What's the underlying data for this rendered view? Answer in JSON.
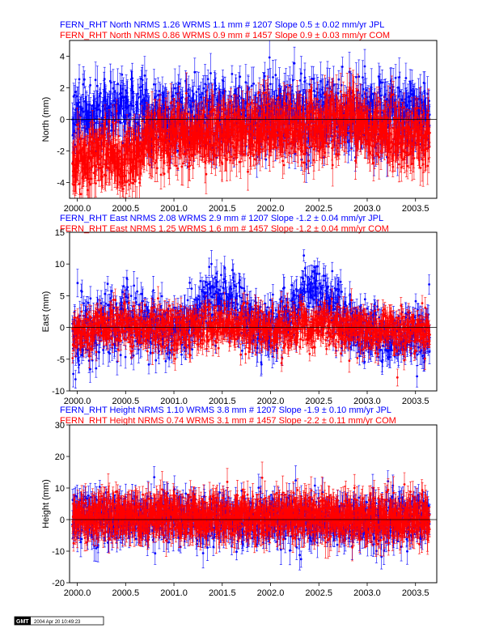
{
  "chart_data": [
    {
      "type": "scatter",
      "ylabel": "North (mm)",
      "xlim": [
        1999.92,
        2003.72
      ],
      "ylim": [
        -5,
        5
      ],
      "yticks": [
        -4,
        -2,
        0,
        2,
        4
      ],
      "xticks": [
        "2000.0",
        "2000.5",
        "2001.0",
        "2001.5",
        "2002.0",
        "2002.5",
        "2003.0",
        "2003.5"
      ],
      "xtick_values": [
        2000.0,
        2000.5,
        2001.0,
        2001.5,
        2002.0,
        2002.5,
        2003.0,
        2003.5
      ],
      "zero_line": true,
      "series": [
        {
          "name": "FERN_RHT North NRMS 1.26 WRMS  1.1 mm # 1207 Slope    0.5 ±  0.02 mm/yr JPL",
          "color": "#0000ff",
          "nrms": 1.26,
          "wrms_mm": 1.1,
          "count": 1207,
          "slope_mm_yr": 0.5,
          "slope_err_mm_yr": 0.02,
          "scatter_mm": 1.1,
          "err_mm": 0.9,
          "trend": [
            [
              1999.95,
              0.2
            ],
            [
              2000.2,
              0.3
            ],
            [
              2000.45,
              0.5
            ],
            [
              2000.6,
              0.4
            ],
            [
              2000.75,
              0.3
            ],
            [
              2001.2,
              0.3
            ],
            [
              2001.6,
              0.5
            ],
            [
              2002.0,
              0.3
            ],
            [
              2002.3,
              0.5
            ],
            [
              2002.7,
              0.4
            ],
            [
              2002.85,
              0.2
            ],
            [
              2003.0,
              0.4
            ],
            [
              2003.3,
              0.5
            ],
            [
              2003.65,
              0.3
            ]
          ]
        },
        {
          "name": "FERN_RHT North NRMS 0.86 WRMS  0.9 mm # 1457 Slope    0.9 ±  0.03 mm/yr COM",
          "color": "#ff0000",
          "nrms": 0.86,
          "wrms_mm": 0.9,
          "count": 1457,
          "slope_mm_yr": 0.9,
          "slope_err_mm_yr": 0.03,
          "scatter_mm": 0.9,
          "err_mm": 1.0,
          "trend": [
            [
              1999.95,
              -2.8
            ],
            [
              2000.3,
              -2.2
            ],
            [
              2000.65,
              -2.8
            ],
            [
              2000.7,
              -1.2
            ],
            [
              2001.0,
              -1.0
            ],
            [
              2001.5,
              -0.9
            ],
            [
              2002.0,
              -0.6
            ],
            [
              2002.5,
              -0.4
            ],
            [
              2002.8,
              0.2
            ],
            [
              2003.0,
              -0.7
            ],
            [
              2003.3,
              -1.0
            ],
            [
              2003.6,
              -1.2
            ]
          ]
        }
      ]
    },
    {
      "type": "scatter",
      "ylabel": "East (mm)",
      "xlim": [
        1999.92,
        2003.72
      ],
      "ylim": [
        -10,
        15
      ],
      "yticks": [
        -10,
        -5,
        0,
        5,
        10,
        15
      ],
      "xticks": [
        "2000.0",
        "2000.5",
        "2001.0",
        "2001.5",
        "2002.0",
        "2002.5",
        "2003.0",
        "2003.5"
      ],
      "xtick_values": [
        2000.0,
        2000.5,
        2001.0,
        2001.5,
        2002.0,
        2002.5,
        2003.0,
        2003.5
      ],
      "zero_line": true,
      "series": [
        {
          "name": "FERN_RHT East NRMS 2.08 WRMS  2.9 mm # 1207 Slope   -1.2 ±  0.04 mm/yr JPL",
          "color": "#0000ff",
          "nrms": 2.08,
          "wrms_mm": 2.9,
          "count": 1207,
          "slope_mm_yr": -1.2,
          "slope_err_mm_yr": 0.04,
          "scatter_mm": 2.4,
          "err_mm": 1.6,
          "trend": [
            [
              1999.95,
              -1.0
            ],
            [
              2000.3,
              0.0
            ],
            [
              2000.5,
              1.5
            ],
            [
              2000.8,
              0.0
            ],
            [
              2001.1,
              -0.5
            ],
            [
              2001.4,
              5.0
            ],
            [
              2001.6,
              3.5
            ],
            [
              2001.9,
              0.0
            ],
            [
              2002.1,
              0.5
            ],
            [
              2002.4,
              6.0
            ],
            [
              2002.65,
              4.0
            ],
            [
              2002.8,
              0.5
            ],
            [
              2003.2,
              -1.5
            ],
            [
              2003.65,
              -1.0
            ]
          ]
        },
        {
          "name": "FERN_RHT East NRMS 1.25 WRMS  1.6 mm # 1457 Slope   -1.2 ±  0.04 mm/yr COM",
          "color": "#ff0000",
          "nrms": 1.25,
          "wrms_mm": 1.6,
          "count": 1457,
          "slope_mm_yr": -1.2,
          "slope_err_mm_yr": 0.04,
          "scatter_mm": 1.6,
          "err_mm": 1.3,
          "trend": [
            [
              1999.95,
              -1.0
            ],
            [
              2000.5,
              0.5
            ],
            [
              2001.0,
              -0.5
            ],
            [
              2001.5,
              0.5
            ],
            [
              2002.0,
              -0.5
            ],
            [
              2002.5,
              0.5
            ],
            [
              2003.0,
              -0.5
            ],
            [
              2003.65,
              -0.5
            ]
          ]
        }
      ]
    },
    {
      "type": "scatter",
      "ylabel": "Height (mm)",
      "xlim": [
        1999.92,
        2003.72
      ],
      "ylim": [
        -20,
        30
      ],
      "yticks": [
        -20,
        -10,
        0,
        10,
        20,
        30
      ],
      "xticks": [
        "2000.0",
        "2000.5",
        "2001.0",
        "2001.5",
        "2002.0",
        "2002.5",
        "2003.0",
        "2003.5"
      ],
      "xtick_values": [
        2000.0,
        2000.5,
        2001.0,
        2001.5,
        2002.0,
        2002.5,
        2003.0,
        2003.5
      ],
      "zero_line": true,
      "series": [
        {
          "name": "FERN_RHT Height NRMS 1.10 WRMS  3.8 mm # 1207 Slope   -1.9 ±  0.10 mm/yr JPL",
          "color": "#0000ff",
          "nrms": 1.1,
          "wrms_mm": 3.8,
          "count": 1207,
          "slope_mm_yr": -1.9,
          "slope_err_mm_yr": 0.1,
          "scatter_mm": 3.8,
          "err_mm": 3.3,
          "trend": [
            [
              1999.95,
              1.0
            ],
            [
              2000.5,
              0.0
            ],
            [
              2001.0,
              0.5
            ],
            [
              2001.5,
              0.0
            ],
            [
              2002.0,
              -0.5
            ],
            [
              2002.5,
              0.0
            ],
            [
              2003.0,
              -0.5
            ],
            [
              2003.65,
              0.0
            ]
          ]
        },
        {
          "name": "FERN_RHT Height NRMS 0.74 WRMS  3.1 mm # 1457 Slope   -2.2 ±  0.11 mm/yr COM",
          "color": "#ff0000",
          "nrms": 0.74,
          "wrms_mm": 3.1,
          "count": 1457,
          "slope_mm_yr": -2.2,
          "slope_err_mm_yr": 0.11,
          "scatter_mm": 3.1,
          "err_mm": 4.0,
          "trend": [
            [
              1999.95,
              1.5
            ],
            [
              2000.5,
              1.0
            ],
            [
              2001.0,
              1.5
            ],
            [
              2001.5,
              1.0
            ],
            [
              2002.0,
              0.5
            ],
            [
              2002.5,
              1.0
            ],
            [
              2003.0,
              0.5
            ],
            [
              2003.65,
              0.5
            ]
          ]
        }
      ]
    }
  ],
  "stamp": {
    "logo": "GMT",
    "text": "2004 Apr 20 10:49:23"
  }
}
